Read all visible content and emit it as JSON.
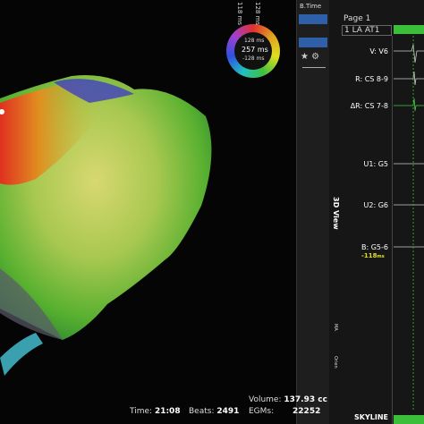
{
  "color_bar": {
    "top_labels": [
      "118 ms",
      "128 ms"
    ],
    "upper": "128 ms",
    "center": "257 ms",
    "lower": "-128 ms"
  },
  "toolbar": {
    "title": "B.Time"
  },
  "side_tab": {
    "label": "3D View",
    "small_labels": [
      "MA",
      "Orien"
    ]
  },
  "panel": {
    "page": "Page 1",
    "map": "1 LA AT1",
    "channels": [
      {
        "label": "V: V6"
      },
      {
        "label": "R: CS 8-9"
      },
      {
        "label": "ΔR: CS 7-8"
      },
      {
        "label": "U1: G5"
      },
      {
        "label": "U2: G6"
      },
      {
        "label": "B: G5-6"
      }
    ],
    "annotation": {
      "value": "-118",
      "unit": "ms"
    },
    "footer": "SKYLINE"
  },
  "status": [
    {
      "label": "Time:",
      "value": "21:08"
    },
    {
      "label": "Beats:",
      "value": "2491"
    },
    {
      "label": "Volume:",
      "value": "137.93 cc"
    },
    {
      "label": "EGMs:",
      "value": "22252"
    }
  ]
}
